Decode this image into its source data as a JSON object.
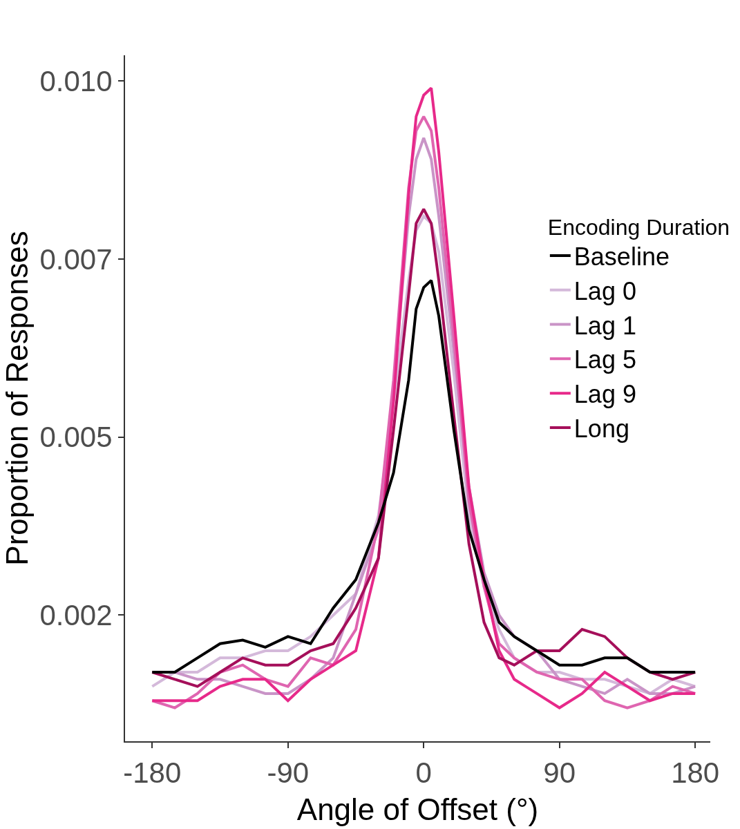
{
  "chart_data": {
    "type": "line",
    "xlabel": "Angle of Offset (°)",
    "ylabel": "Proportion of Responses",
    "legend_title": "Encoding Duration",
    "x": [
      -180,
      -165,
      -150,
      -135,
      -120,
      -105,
      -90,
      -75,
      -60,
      -45,
      -30,
      -20,
      -10,
      -5,
      0,
      5,
      10,
      20,
      30,
      40,
      50,
      60,
      75,
      90,
      105,
      120,
      135,
      150,
      165,
      180
    ],
    "series": [
      {
        "name": "Baseline",
        "color": "#000000",
        "values": [
          0.0017,
          0.0017,
          0.0019,
          0.0021,
          0.00215,
          0.00205,
          0.0022,
          0.0021,
          0.0026,
          0.003,
          0.0038,
          0.0045,
          0.0058,
          0.0068,
          0.0071,
          0.0072,
          0.0067,
          0.0051,
          0.0037,
          0.003,
          0.0024,
          0.0022,
          0.002,
          0.0018,
          0.0018,
          0.0019,
          0.0019,
          0.0017,
          0.0017,
          0.0017
        ]
      },
      {
        "name": "Lag 0",
        "color": "#d4b9da",
        "values": [
          0.0015,
          0.0017,
          0.0017,
          0.0019,
          0.0019,
          0.002,
          0.002,
          0.0022,
          0.0025,
          0.0028,
          0.0039,
          0.0055,
          0.0072,
          0.0079,
          0.0081,
          0.008,
          0.0076,
          0.0059,
          0.0039,
          0.0029,
          0.0023,
          0.0019,
          0.0017,
          0.0017,
          0.0016,
          0.0016,
          0.0015,
          0.0014,
          0.0016,
          0.0015
        ]
      },
      {
        "name": "Lag 1",
        "color": "#c994c7",
        "values": [
          0.0017,
          0.0017,
          0.0016,
          0.0016,
          0.0015,
          0.0014,
          0.0014,
          0.0016,
          0.0019,
          0.0028,
          0.0037,
          0.0057,
          0.0081,
          0.0089,
          0.0092,
          0.0089,
          0.0081,
          0.0062,
          0.0043,
          0.0031,
          0.0025,
          0.0022,
          0.002,
          0.0016,
          0.0015,
          0.0014,
          0.0016,
          0.0014,
          0.0014,
          0.0015
        ]
      },
      {
        "name": "Lag 5",
        "color": "#df65b0",
        "values": [
          0.0013,
          0.0012,
          0.0014,
          0.0017,
          0.0018,
          0.0016,
          0.0015,
          0.0019,
          0.0018,
          0.0023,
          0.0038,
          0.0058,
          0.0085,
          0.0093,
          0.0095,
          0.0093,
          0.0085,
          0.0064,
          0.0041,
          0.0029,
          0.0021,
          0.0019,
          0.0017,
          0.0016,
          0.0016,
          0.0013,
          0.0012,
          0.0013,
          0.0015,
          0.0014
        ]
      },
      {
        "name": "Lag 9",
        "color": "#e7298a",
        "values": [
          0.0013,
          0.0013,
          0.0013,
          0.0015,
          0.0016,
          0.0016,
          0.0013,
          0.0016,
          0.0018,
          0.002,
          0.0033,
          0.0055,
          0.0084,
          0.0095,
          0.0098,
          0.0099,
          0.009,
          0.0067,
          0.0043,
          0.003,
          0.002,
          0.0016,
          0.0014,
          0.0012,
          0.0014,
          0.0017,
          0.0015,
          0.0013,
          0.0014,
          0.0014
        ]
      },
      {
        "name": "Long",
        "color": "#a50f5a",
        "values": [
          0.0017,
          0.0016,
          0.0015,
          0.0017,
          0.0019,
          0.0018,
          0.0018,
          0.002,
          0.0021,
          0.0026,
          0.0033,
          0.0051,
          0.007,
          0.008,
          0.0082,
          0.008,
          0.0072,
          0.0053,
          0.0035,
          0.0024,
          0.0019,
          0.0018,
          0.002,
          0.002,
          0.0023,
          0.0022,
          0.0019,
          0.0017,
          0.0016,
          0.0017
        ]
      }
    ],
    "xlim": [
      -198,
      190
    ],
    "xticks": [
      -180,
      -90,
      0,
      90,
      180
    ],
    "ylim": [
      0.00073,
      0.01036
    ],
    "yticks": [
      {
        "value": 0.0025,
        "label": "0.002"
      },
      {
        "value": 0.005,
        "label": "0.005"
      },
      {
        "value": 0.0075,
        "label": "0.007"
      },
      {
        "value": 0.01,
        "label": "0.010"
      }
    ],
    "grid": false,
    "legend": "right",
    "marker": "none",
    "line_style": "solid"
  }
}
